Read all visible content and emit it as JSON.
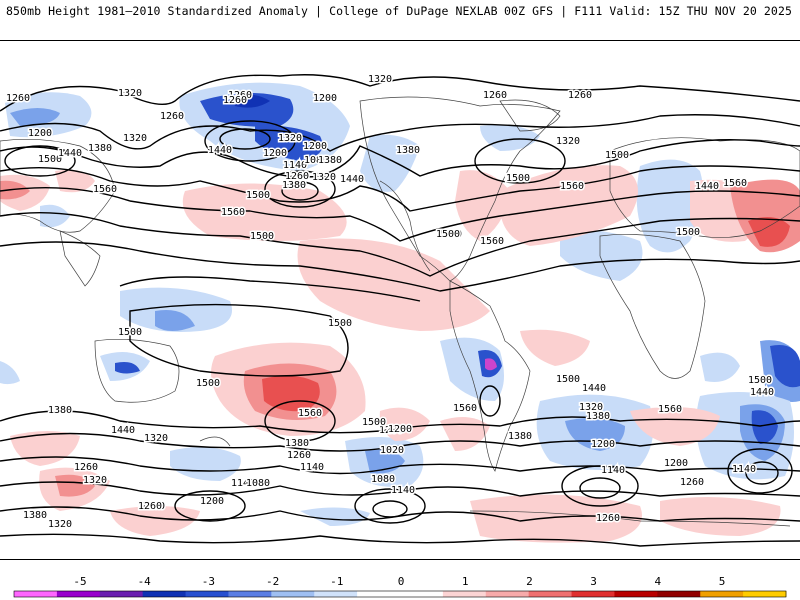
{
  "header": {
    "left": "850mb Height 1981–2010 Standardized Anomaly | College of DuPage NEXLAB",
    "right": "00Z GFS | F111 Valid: 15Z THU NOV 20 2025"
  },
  "contour_labels": [
    "1320",
    "1260",
    "1200",
    "1260",
    "1320",
    "1260",
    "1200",
    "1320",
    "1380",
    "1260",
    "1320",
    "1260",
    "1200",
    "1140",
    "1080",
    "1260",
    "1320",
    "1380",
    "1440",
    "1500",
    "1260",
    "1200",
    "1320",
    "1380",
    "1440",
    "1500",
    "1560",
    "1380",
    "1440",
    "1560",
    "1500",
    "1560",
    "1500",
    "1440",
    "1500",
    "1560",
    "1500",
    "1500",
    "1500",
    "1500",
    "1500",
    "1500",
    "1560",
    "1380",
    "1440",
    "1320",
    "1260",
    "1320",
    "1380",
    "1500",
    "1560",
    "1380",
    "1260",
    "1140",
    "1140",
    "1080",
    "1200",
    "1260",
    "1320",
    "1200",
    "1020",
    "1080",
    "1140",
    "1500",
    "1440",
    "1560",
    "1380",
    "1500",
    "1440",
    "1560",
    "1320",
    "1380",
    "1200",
    "1140",
    "1260",
    "1500",
    "1200",
    "1140",
    "1200",
    "1260",
    "1260"
  ],
  "colorbar": {
    "ticks": [
      "-5",
      "-4",
      "-3",
      "-2",
      "-1",
      "0",
      "1",
      "2",
      "3",
      "4",
      "5"
    ],
    "colors": [
      "#ff66ff",
      "#9900cc",
      "#6a1fb0",
      "#1032b4",
      "#2850d0",
      "#5b7ee4",
      "#9fbff2",
      "#d0e2fa",
      "#ffffff",
      "#ffffff",
      "#fcd4d4",
      "#f7aaaa",
      "#ef7070",
      "#e03030",
      "#b80000",
      "#900000",
      "#f0a000",
      "#ffcc00"
    ]
  },
  "colors": {
    "neg1": "#c8dcf8",
    "neg2": "#7aa2ea",
    "neg3": "#2a52cc",
    "pos1": "#fbd0d0",
    "pos2": "#f29090",
    "pos3": "#e85050",
    "land": "#404040"
  }
}
